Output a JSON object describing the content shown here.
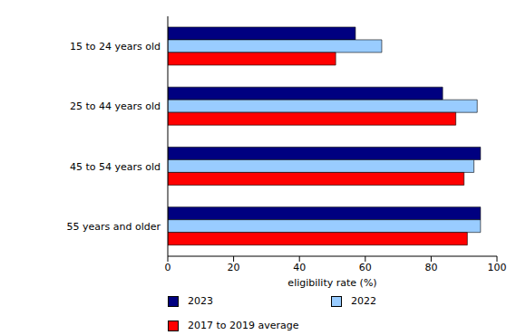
{
  "chart_data": {
    "type": "bar",
    "orientation": "horizontal",
    "x_label": "eligibility rate (%)",
    "categories": [
      "15 to 24 years old",
      "25 to 44 years old",
      "45 to 54 years old",
      "55 years and older"
    ],
    "series": [
      {
        "name": "2023",
        "color": "#000080",
        "values": [
          57,
          83.5,
          95,
          95
        ]
      },
      {
        "name": "2022",
        "color": "#99ccff",
        "values": [
          65,
          94,
          93,
          95
        ]
      },
      {
        "name": "2017 to 2019 average",
        "color": "#ff0000",
        "values": [
          51,
          87.5,
          90,
          91
        ]
      }
    ],
    "xlim": [
      0,
      100
    ],
    "xticks": [
      0,
      20,
      40,
      60,
      80,
      100
    ],
    "grid": false,
    "legend": "bottom"
  }
}
